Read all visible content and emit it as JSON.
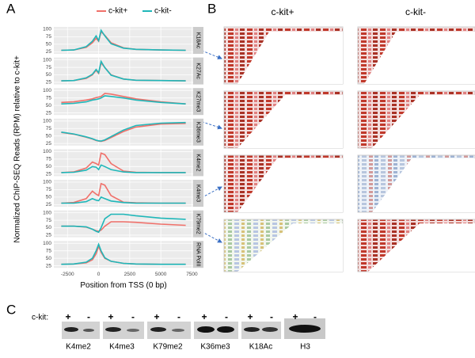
{
  "panel_labels": [
    "A",
    "B",
    "C"
  ],
  "chart_data": {
    "type": "line",
    "ylabel": "Normalized ChIP-SEQ Reads (RPM) relative to c-kit+",
    "xlabel": "Position from TSS (0 bp)",
    "x": [
      -3000,
      -2000,
      -1000,
      -500,
      -200,
      0,
      200,
      500,
      1000,
      2000,
      3000,
      5000,
      7000
    ],
    "xlim": [
      -3600,
      7600
    ],
    "xticks": [
      -2500,
      0,
      2500,
      5000,
      7500
    ],
    "ylim": [
      18,
      108
    ],
    "yticks": [
      25,
      50,
      75,
      100
    ],
    "series": [
      {
        "name": "c-kit+",
        "color": "#f0706a"
      },
      {
        "name": "c-kit-",
        "color": "#1fb7b9"
      }
    ],
    "facets": [
      {
        "label": "K18Ac",
        "values": [
          [
            30,
            31,
            40,
            55,
            70,
            60,
            92,
            80,
            55,
            38,
            33,
            31,
            30
          ],
          [
            30,
            31,
            42,
            60,
            78,
            62,
            97,
            78,
            52,
            37,
            33,
            31,
            30
          ]
        ]
      },
      {
        "label": "K27Ac",
        "values": [
          [
            30,
            31,
            38,
            50,
            65,
            55,
            90,
            75,
            50,
            36,
            32,
            31,
            30
          ],
          [
            30,
            31,
            40,
            52,
            68,
            57,
            95,
            74,
            49,
            36,
            32,
            31,
            30
          ]
        ]
      },
      {
        "label": "K27me3",
        "values": [
          [
            60,
            62,
            68,
            72,
            76,
            78,
            80,
            90,
            88,
            80,
            72,
            62,
            55
          ],
          [
            55,
            57,
            62,
            68,
            70,
            72,
            75,
            82,
            80,
            75,
            68,
            60,
            55
          ]
        ]
      },
      {
        "label": "K36me3",
        "values": [
          [
            62,
            56,
            46,
            40,
            35,
            33,
            32,
            35,
            45,
            65,
            80,
            90,
            92
          ],
          [
            63,
            57,
            47,
            41,
            36,
            34,
            33,
            37,
            48,
            70,
            85,
            93,
            95
          ]
        ]
      },
      {
        "label": "K4me2",
        "values": [
          [
            30,
            32,
            45,
            65,
            60,
            55,
            95,
            90,
            60,
            35,
            31,
            30,
            30
          ],
          [
            30,
            31,
            38,
            50,
            48,
            40,
            55,
            50,
            40,
            32,
            30,
            30,
            30
          ]
        ]
      },
      {
        "label": "K4me3",
        "values": [
          [
            30,
            32,
            45,
            70,
            60,
            55,
            95,
            90,
            55,
            33,
            31,
            30,
            30
          ],
          [
            30,
            30,
            35,
            45,
            40,
            38,
            50,
            45,
            37,
            32,
            30,
            30,
            30
          ]
        ]
      },
      {
        "label": "K79me2",
        "values": [
          [
            55,
            55,
            52,
            45,
            40,
            38,
            42,
            55,
            70,
            70,
            68,
            62,
            58
          ],
          [
            55,
            55,
            53,
            45,
            38,
            35,
            50,
            80,
            95,
            95,
            90,
            82,
            78
          ]
        ]
      },
      {
        "label": "RNA PolII",
        "values": [
          [
            30,
            31,
            35,
            45,
            65,
            90,
            70,
            50,
            40,
            33,
            31,
            30,
            30
          ],
          [
            30,
            31,
            37,
            50,
            75,
            97,
            75,
            52,
            40,
            33,
            31,
            30,
            30
          ]
        ]
      }
    ]
  },
  "browser": {
    "columns": [
      "c-kit+",
      "c-kit-"
    ]
  },
  "blot": {
    "row_label": "c-kit:",
    "lanes": [
      {
        "label": "K4me2",
        "conditions": [
          "+",
          "-"
        ]
      },
      {
        "label": "K4me3",
        "conditions": [
          "+",
          "-"
        ]
      },
      {
        "label": "K79me2",
        "conditions": [
          "+",
          "-"
        ]
      },
      {
        "label": "K36me3",
        "conditions": [
          "+",
          "-"
        ]
      },
      {
        "label": "K18Ac",
        "conditions": [
          "+",
          "-"
        ]
      },
      {
        "label": "H3",
        "conditions": [
          "+",
          "-"
        ]
      }
    ]
  }
}
